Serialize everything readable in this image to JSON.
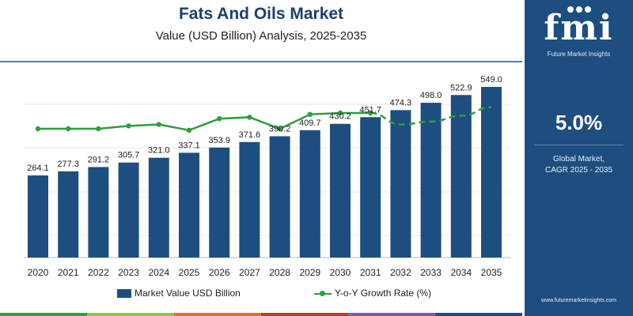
{
  "header": {
    "title": "Fats And Oils Market",
    "subtitle": "Value (USD Billion) Analysis, 2025-2035"
  },
  "chart_data": {
    "type": "bar",
    "categories": [
      "2020",
      "2021",
      "2022",
      "2023",
      "2024",
      "2025",
      "2026",
      "2027",
      "2028",
      "2029",
      "2030",
      "2031",
      "2032",
      "2033",
      "2034",
      "2035"
    ],
    "series": [
      {
        "name": "Market Value USD Billion",
        "type": "bar",
        "values": [
          264.1,
          277.3,
          291.2,
          305.7,
          321.0,
          337.1,
          353.9,
          371.6,
          390.2,
          409.7,
          430.2,
          451.7,
          474.3,
          498.0,
          522.9,
          549.0
        ],
        "labels": [
          "264.1",
          "277.3",
          "291.2",
          "305.7",
          "321.0",
          "337.1",
          "353.9",
          "371.6",
          "390.2",
          "409.7",
          "430.2",
          "451.7",
          "474.3",
          "498.0",
          "522.9",
          "549.0"
        ],
        "color": "#1e4e80"
      },
      {
        "name": "Y-o-Y Growth Rate (%)",
        "type": "line",
        "values": [
          4.9,
          4.9,
          4.9,
          5.1,
          5.2,
          4.8,
          5.6,
          5.7,
          4.9,
          5.9,
          6.0,
          6.0,
          5.2,
          5.4,
          5.8,
          6.4
        ],
        "dashed_from_index": 12,
        "color": "#2e9e3e"
      }
    ],
    "legend_position": "bottom",
    "grid": true
  },
  "legend": {
    "bar_label": "Market Value USD Billion",
    "line_label": "Y-o-Y Growth Rate (%)"
  },
  "side_panel": {
    "logo": "fmi",
    "logo_subtitle": "Future Market Insights",
    "cagr_value": "5.0%",
    "cagr_label_line1": "Global Market,",
    "cagr_label_line2": "CAGR 2025 - 2035",
    "website": "www.futuremarketinsights.com"
  },
  "colors": {
    "bar": "#1e4e80",
    "growth_line": "#2e9e3e",
    "panel": "#1e4e80",
    "bottom_bar": [
      "#2e9e3e",
      "#8dc63f",
      "#e76f2a",
      "#c0392b",
      "#7b5ea7",
      "#1e4e80"
    ]
  }
}
